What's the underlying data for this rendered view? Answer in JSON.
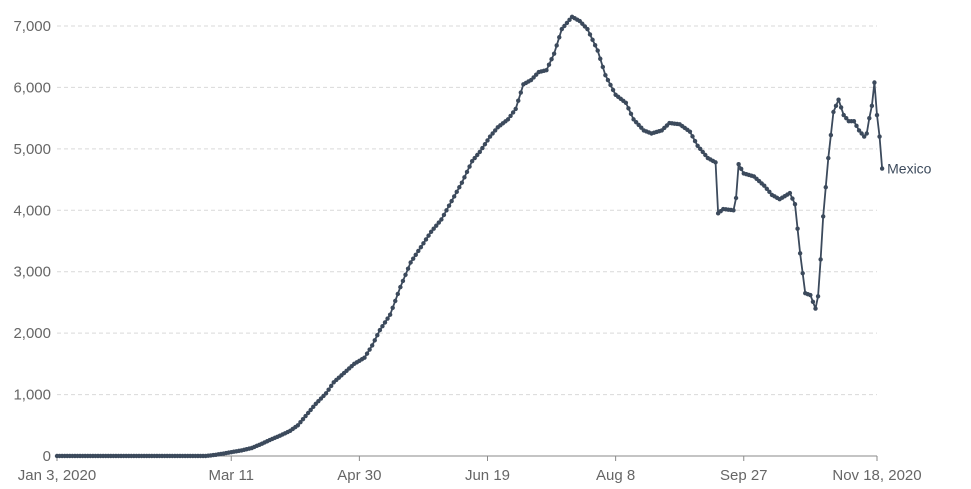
{
  "chart_data": {
    "type": "line",
    "title": "",
    "xlabel": "",
    "ylabel": "",
    "ylim": [
      0,
      7000
    ],
    "yticks": [
      0,
      1000,
      2000,
      3000,
      4000,
      5000,
      6000,
      7000
    ],
    "ytick_labels": [
      "0",
      "1,000",
      "2,000",
      "3,000",
      "4,000",
      "5,000",
      "6,000",
      "7,000"
    ],
    "xlim": [
      "2020-01-03",
      "2020-11-18"
    ],
    "xticks": [
      "2020-01-03",
      "2020-03-11",
      "2020-04-30",
      "2020-06-19",
      "2020-08-08",
      "2020-09-27",
      "2020-11-18"
    ],
    "xtick_labels": [
      "Jan 3, 2020",
      "Mar 11",
      "Apr 30",
      "Jun 19",
      "Aug 8",
      "Sep 27",
      "Nov 18, 2020"
    ],
    "grid": true,
    "series": [
      {
        "name": "Mexico",
        "color": "#3c4a5c",
        "points": [
          [
            "2020-01-03",
            0
          ],
          [
            "2020-02-01",
            0
          ],
          [
            "2020-03-01",
            0
          ],
          [
            "2020-03-05",
            20
          ],
          [
            "2020-03-08",
            40
          ],
          [
            "2020-03-12",
            70
          ],
          [
            "2020-03-15",
            90
          ],
          [
            "2020-03-19",
            130
          ],
          [
            "2020-03-23",
            200
          ],
          [
            "2020-03-26",
            260
          ],
          [
            "2020-03-30",
            330
          ],
          [
            "2020-04-03",
            410
          ],
          [
            "2020-04-06",
            500
          ],
          [
            "2020-04-10",
            700
          ],
          [
            "2020-04-13",
            850
          ],
          [
            "2020-04-17",
            1020
          ],
          [
            "2020-04-20",
            1200
          ],
          [
            "2020-04-24",
            1350
          ],
          [
            "2020-04-28",
            1500
          ],
          [
            "2020-05-02",
            1600
          ],
          [
            "2020-05-05",
            1800
          ],
          [
            "2020-05-08",
            2050
          ],
          [
            "2020-05-12",
            2300
          ],
          [
            "2020-05-16",
            2750
          ],
          [
            "2020-05-20",
            3150
          ],
          [
            "2020-05-24",
            3400
          ],
          [
            "2020-05-28",
            3650
          ],
          [
            "2020-06-01",
            3850
          ],
          [
            "2020-06-05",
            4150
          ],
          [
            "2020-06-09",
            4450
          ],
          [
            "2020-06-13",
            4800
          ],
          [
            "2020-06-16",
            4950
          ],
          [
            "2020-06-20",
            5200
          ],
          [
            "2020-06-23",
            5350
          ],
          [
            "2020-06-27",
            5480
          ],
          [
            "2020-06-30",
            5650
          ],
          [
            "2020-07-03",
            6050
          ],
          [
            "2020-07-06",
            6120
          ],
          [
            "2020-07-09",
            6250
          ],
          [
            "2020-07-12",
            6280
          ],
          [
            "2020-07-15",
            6550
          ],
          [
            "2020-07-18",
            6950
          ],
          [
            "2020-07-22",
            7150
          ],
          [
            "2020-07-25",
            7080
          ],
          [
            "2020-07-28",
            6950
          ],
          [
            "2020-08-01",
            6600
          ],
          [
            "2020-08-04",
            6200
          ],
          [
            "2020-08-08",
            5880
          ],
          [
            "2020-08-12",
            5750
          ],
          [
            "2020-08-15",
            5480
          ],
          [
            "2020-08-19",
            5300
          ],
          [
            "2020-08-22",
            5250
          ],
          [
            "2020-08-26",
            5300
          ],
          [
            "2020-08-29",
            5420
          ],
          [
            "2020-09-02",
            5400
          ],
          [
            "2020-09-06",
            5280
          ],
          [
            "2020-09-09",
            5050
          ],
          [
            "2020-09-13",
            4850
          ],
          [
            "2020-09-16",
            4780
          ],
          [
            "2020-09-17",
            3950
          ],
          [
            "2020-09-19",
            4020
          ],
          [
            "2020-09-23",
            4000
          ],
          [
            "2020-09-24",
            4200
          ],
          [
            "2020-09-25",
            4750
          ],
          [
            "2020-09-27",
            4600
          ],
          [
            "2020-10-01",
            4550
          ],
          [
            "2020-10-05",
            4400
          ],
          [
            "2020-10-08",
            4250
          ],
          [
            "2020-10-11",
            4180
          ],
          [
            "2020-10-15",
            4280
          ],
          [
            "2020-10-17",
            4100
          ],
          [
            "2020-10-19",
            3300
          ],
          [
            "2020-10-21",
            2650
          ],
          [
            "2020-10-23",
            2620
          ],
          [
            "2020-10-25",
            2400
          ],
          [
            "2020-10-26",
            2600
          ],
          [
            "2020-10-27",
            3200
          ],
          [
            "2020-10-28",
            3900
          ],
          [
            "2020-10-30",
            4850
          ],
          [
            "2020-11-01",
            5600
          ],
          [
            "2020-11-03",
            5800
          ],
          [
            "2020-11-05",
            5550
          ],
          [
            "2020-11-07",
            5450
          ],
          [
            "2020-11-09",
            5450
          ],
          [
            "2020-11-11",
            5300
          ],
          [
            "2020-11-13",
            5200
          ],
          [
            "2020-11-14",
            5250
          ],
          [
            "2020-11-15",
            5500
          ],
          [
            "2020-11-16",
            5700
          ],
          [
            "2020-11-17",
            6080
          ],
          [
            "2020-11-18",
            5550
          ],
          [
            "2020-11-19",
            5200
          ],
          [
            "2020-11-20",
            4680
          ]
        ]
      }
    ]
  }
}
